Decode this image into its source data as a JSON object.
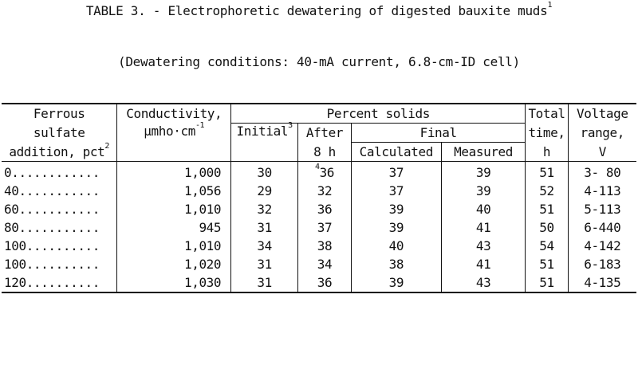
{
  "title": "TABLE 3. - Electrophoretic dewatering of digested bauxite muds",
  "title_footnote": "1",
  "subtitle": "(Dewatering conditions:  40-mA current, 6.8-cm-ID cell)",
  "headers": {
    "ferrous_1": "Ferrous",
    "ferrous_2": "sulfate",
    "ferrous_3": "addition, pct",
    "ferrous_fn": "2",
    "cond_1": "Conductivity,",
    "cond_2": "μmho·cm",
    "cond_exp": "-1",
    "percent_solids": "Percent solids",
    "initial": "Initial",
    "initial_fn": "3",
    "after_1": "After",
    "after_2": "8 h",
    "final": "Final",
    "calculated": "Calculated",
    "measured": "Measured",
    "total_1": "Total",
    "total_2": "time,",
    "total_3": "h",
    "volt_1": "Voltage",
    "volt_2": "range,",
    "volt_3": "V"
  },
  "rows": [
    {
      "addition": "0............",
      "conductivity": "1,000",
      "initial": "30",
      "after_fn": "4",
      "after": "36",
      "calculated": "37",
      "measured": "39",
      "time": "51",
      "voltage": "3- 80"
    },
    {
      "addition": "40...........",
      "conductivity": "1,056",
      "initial": "29",
      "after_fn": "",
      "after": "32",
      "calculated": "37",
      "measured": "39",
      "time": "52",
      "voltage": "4-113"
    },
    {
      "addition": "60...........",
      "conductivity": "1,010",
      "initial": "32",
      "after_fn": "",
      "after": "36",
      "calculated": "39",
      "measured": "40",
      "time": "51",
      "voltage": "5-113"
    },
    {
      "addition": "80...........",
      "conductivity": "945",
      "initial": "31",
      "after_fn": "",
      "after": "37",
      "calculated": "39",
      "measured": "41",
      "time": "50",
      "voltage": "6-440"
    },
    {
      "addition": "100..........",
      "conductivity": "1,010",
      "initial": "34",
      "after_fn": "",
      "after": "38",
      "calculated": "40",
      "measured": "43",
      "time": "54",
      "voltage": "4-142"
    },
    {
      "addition": "100..........",
      "conductivity": "1,020",
      "initial": "31",
      "after_fn": "",
      "after": "34",
      "calculated": "38",
      "measured": "41",
      "time": "51",
      "voltage": "6-183"
    },
    {
      "addition": "120..........",
      "conductivity": "1,030",
      "initial": "31",
      "after_fn": "",
      "after": "36",
      "calculated": "39",
      "measured": "43",
      "time": "51",
      "voltage": "4-135"
    }
  ]
}
